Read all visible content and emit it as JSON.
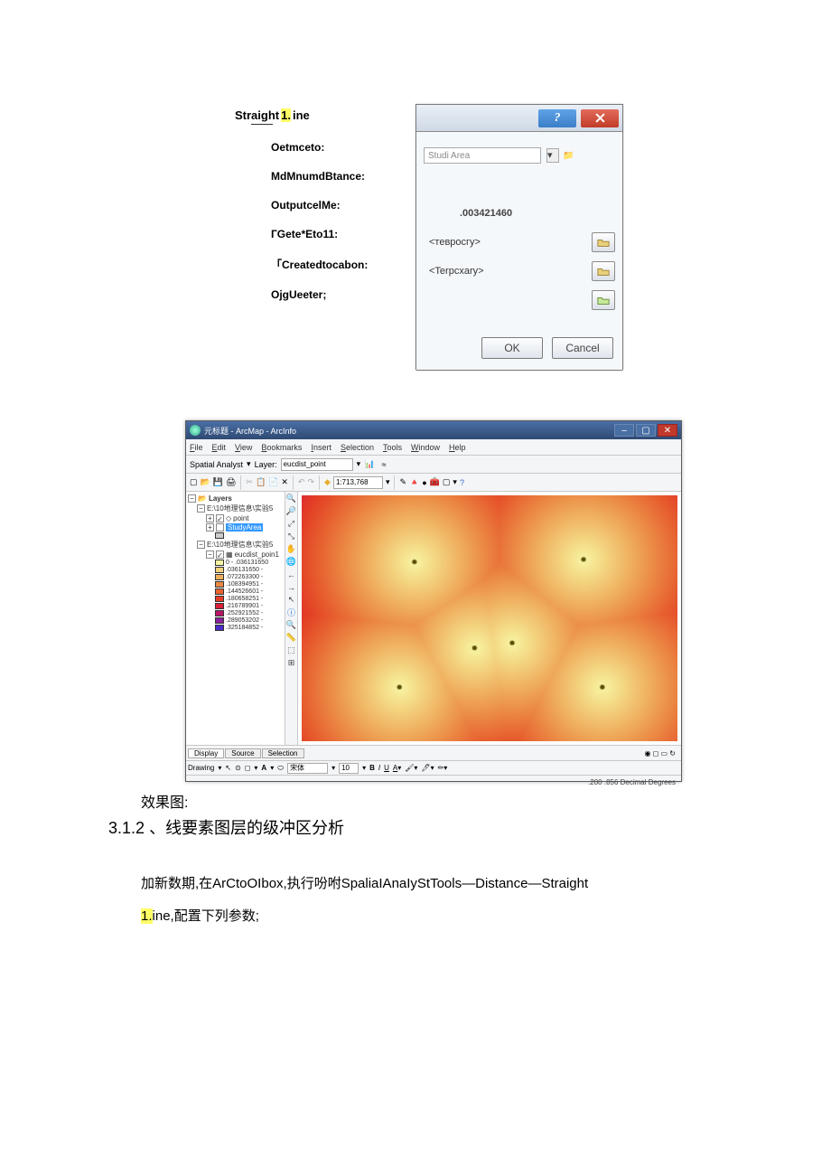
{
  "dialog1": {
    "title_pre": "Straight",
    "title_hl": "1.",
    "title_post": "ine",
    "labels": [
      "Oetmceto:",
      "MdMnumdBtance:",
      "OutputcelMe:",
      "ГGete*Eto11:",
      "「Createdtocabon:",
      "OjgUeeter;"
    ],
    "field_blurred": "Studi Area",
    "val_output": ".003421460",
    "ph_geo": "<тевросгу>",
    "ph_temp": "<Terpcxary>",
    "help": "?",
    "ok": "OK",
    "cancel": "Cancel"
  },
  "arcmap": {
    "title": "元标题 - ArcMap - ArcInfo",
    "menu": [
      "File",
      "Edit",
      "View",
      "Bookmarks",
      "Insert",
      "Selection",
      "Tools",
      "Window",
      "Help"
    ],
    "spatial_label": "Spatial Analyst",
    "layer_label": "Layer:",
    "layer_combo": "eucdist_point",
    "scale": "1:713,768",
    "toc": {
      "root": "Layers",
      "group1": "E:\\10地理信息\\实验5",
      "point": "point",
      "studyarea": "StudyArea",
      "group2": "E:\\10地理信息\\实验5",
      "raster": "eucdist_poin1",
      "classes": [
        {
          "color": "#f7f5a3",
          "label": "0 - .036131650"
        },
        {
          "color": "#f3d27e",
          "label": ".036131650 -"
        },
        {
          "color": "#efae5e",
          "label": ".072263300 -"
        },
        {
          "color": "#eb8844",
          "label": ".108394951 -"
        },
        {
          "color": "#e76230",
          "label": ".144526601 -"
        },
        {
          "color": "#e33e25",
          "label": ".180658251 -"
        },
        {
          "color": "#d91f3a",
          "label": ".216789901 -"
        },
        {
          "color": "#b91568",
          "label": ".252921552 -"
        },
        {
          "color": "#8a1e9e",
          "label": ".289053202 -"
        },
        {
          "color": "#4a2dc4",
          "label": ".325184852 -"
        }
      ]
    },
    "heatmap": {
      "points": [
        {
          "x": 0.3,
          "y": 0.27
        },
        {
          "x": 0.75,
          "y": 0.26
        },
        {
          "x": 0.46,
          "y": 0.62
        },
        {
          "x": 0.56,
          "y": 0.6
        },
        {
          "x": 0.26,
          "y": 0.78
        },
        {
          "x": 0.8,
          "y": 0.78
        }
      ],
      "colors": [
        "#4a2dc4",
        "#8a1e9e",
        "#d91f3a",
        "#e33e25",
        "#e76230",
        "#eb8844",
        "#efae5e",
        "#f3d27e",
        "#f7f5a3"
      ]
    },
    "tabs": [
      "Display",
      "Source",
      "Selection"
    ],
    "drawing": "Drawing",
    "font": "宋体",
    "fontsize": "10",
    "status": ".200   .856 Decimal Degrees"
  },
  "text": {
    "effect": "效果图:",
    "heading_num": "3.1.2",
    "heading_sep": "、",
    "heading_txt": "线要素图层的级冲区分析",
    "para_pre": "加新数期,在ArCtoOIbox,执行吩咐SpaliaIAnaIyStTools—Distance—Straight",
    "para_hl": "1.",
    "para_post": "ine,配置下列参数;"
  }
}
